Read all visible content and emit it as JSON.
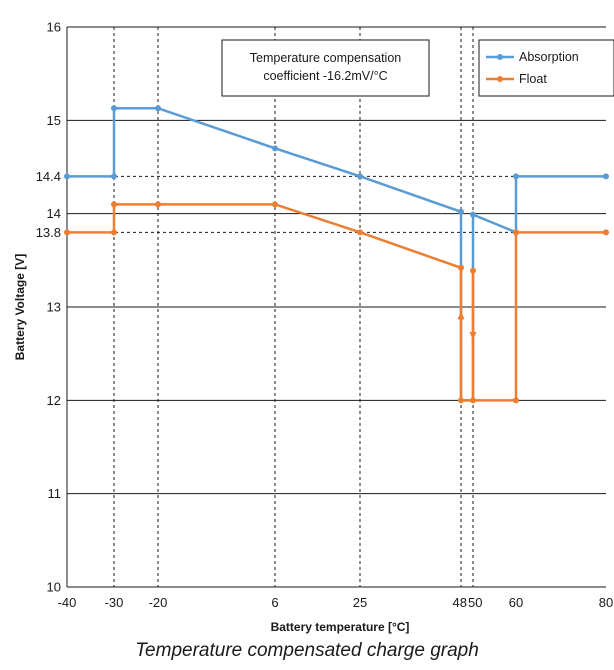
{
  "chart_data": {
    "type": "line",
    "xlabel": "Battery temperature [°C]",
    "ylabel": "Battery Voltage [V]",
    "ylim": [
      10,
      16
    ],
    "x_ticks": [
      {
        "value": -40,
        "label": "-40"
      },
      {
        "value": -30,
        "label": "-30"
      },
      {
        "value": -20,
        "label": "-20"
      },
      {
        "value": 6,
        "label": "6"
      },
      {
        "value": 25,
        "label": "25"
      },
      {
        "value": 48,
        "label": "48"
      },
      {
        "value": 50,
        "label": "50"
      },
      {
        "value": 60,
        "label": "60"
      },
      {
        "value": 80,
        "label": "80"
      }
    ],
    "y_ticks": [
      {
        "value": 10,
        "label": "10"
      },
      {
        "value": 11,
        "label": "11"
      },
      {
        "value": 12,
        "label": "12"
      },
      {
        "value": 13,
        "label": "13"
      },
      {
        "value": 13.8,
        "label": "13.8"
      },
      {
        "value": 14,
        "label": "14"
      },
      {
        "value": 14.4,
        "label": "14.4"
      },
      {
        "value": 15,
        "label": "15"
      },
      {
        "value": 16,
        "label": "16"
      }
    ],
    "solid_gridlines_y": [
      11,
      12,
      13,
      14,
      15,
      16
    ],
    "dashed_gridlines_y": [
      13.8,
      14.4
    ],
    "dashed_gridlines_x": [
      -30,
      -20,
      6,
      25,
      48,
      50
    ],
    "series": [
      {
        "name": "Absorption",
        "color": "#5b9bd5",
        "points": [
          [
            -40,
            14.4
          ],
          [
            -30,
            14.4
          ],
          [
            -30,
            15.13
          ],
          [
            -20,
            15.13
          ],
          [
            6,
            14.7
          ],
          [
            25,
            14.4
          ],
          [
            48,
            14.02
          ],
          [
            48,
            12
          ],
          [
            50,
            12
          ],
          [
            50,
            13.99
          ],
          [
            60,
            13.8
          ],
          [
            60,
            14.4
          ],
          [
            80,
            14.4
          ]
        ],
        "markers": [
          [
            -40,
            14.4
          ],
          [
            -30,
            14.4
          ],
          [
            -30,
            15.13
          ],
          [
            -20,
            15.13
          ],
          [
            6,
            14.7
          ],
          [
            25,
            14.4
          ],
          [
            48,
            14.02
          ],
          [
            50,
            13.99
          ],
          [
            60,
            14.4
          ],
          [
            80,
            14.4
          ]
        ]
      },
      {
        "name": "Float",
        "color": "#ed7d31",
        "points": [
          [
            -40,
            13.8
          ],
          [
            -30,
            13.8
          ],
          [
            -30,
            14.1
          ],
          [
            -20,
            14.1
          ],
          [
            6,
            14.1
          ],
          [
            25,
            13.8
          ],
          [
            48,
            13.42
          ],
          [
            48,
            12
          ],
          [
            50,
            12
          ],
          [
            60,
            12
          ],
          [
            60,
            13.8
          ],
          [
            80,
            13.8
          ]
        ],
        "markers": [
          [
            -40,
            13.8
          ],
          [
            -30,
            13.8
          ],
          [
            -30,
            14.1
          ],
          [
            -20,
            14.1
          ],
          [
            6,
            14.1
          ],
          [
            25,
            13.8
          ],
          [
            48,
            13.42
          ],
          [
            50,
            13.39
          ],
          [
            48,
            12
          ],
          [
            50,
            12
          ],
          [
            60,
            12
          ],
          [
            60,
            13.8
          ],
          [
            80,
            13.8
          ]
        ],
        "extra_segments": [
          [
            [
              50,
              13.39
            ],
            [
              50,
              12
            ]
          ]
        ],
        "arrows": [
          {
            "at": [
              48,
              12.9
            ],
            "direction": "up"
          },
          {
            "at": [
              50,
              12.7
            ],
            "direction": "down"
          }
        ]
      }
    ],
    "legend": {
      "position": "top-right",
      "entries": [
        "Absorption",
        "Float"
      ]
    },
    "annotation": {
      "lines": [
        "Temperature compensation",
        "coefficient -16.2mV/°C"
      ]
    }
  },
  "caption": "Temperature compensated charge graph"
}
